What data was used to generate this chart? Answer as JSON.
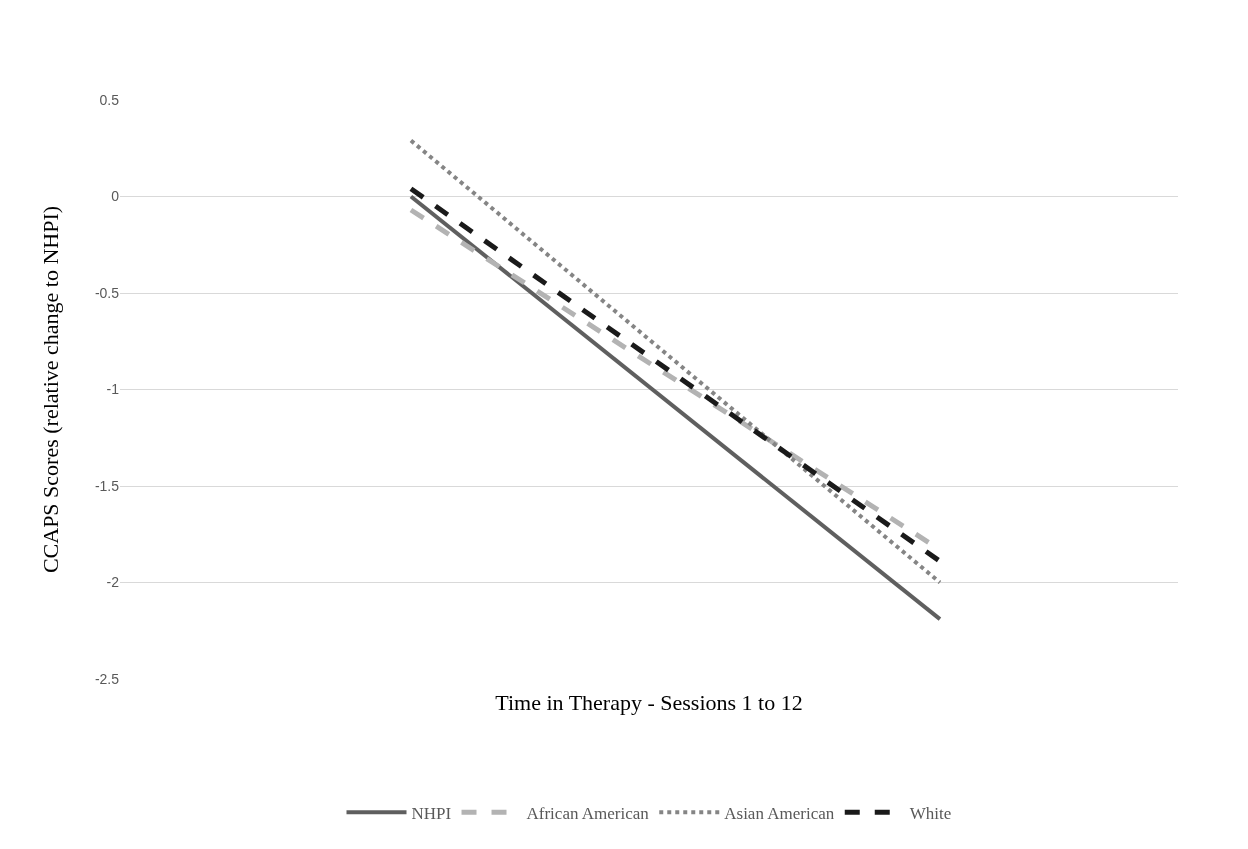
{
  "chart_data": {
    "type": "line",
    "xlabel": "Time in Therapy - Sessions 1 to 12",
    "ylabel": "CCAPS Scores (relative change to NHPI)",
    "categories": [
      null,
      null
    ],
    "series": [
      {
        "name": "NHPI",
        "color": "#5f5f5f",
        "line_style": "solid",
        "values": [
          0.0,
          -2.19
        ]
      },
      {
        "name": "African American",
        "color": "#b3b3b3",
        "line_style": "dashed",
        "values": [
          -0.07,
          -1.83
        ]
      },
      {
        "name": "Asian American",
        "color": "#858585",
        "line_style": "dotted",
        "values": [
          0.29,
          -2.0
        ]
      },
      {
        "name": "White",
        "color": "#1a1a1a",
        "line_style": "dashed",
        "values": [
          0.04,
          -1.89
        ]
      }
    ],
    "ylim": [
      -2.5,
      0.5
    ],
    "yticks": [
      0.5,
      0,
      -0.5,
      -1,
      -1.5,
      -2,
      -2.5
    ],
    "grid": "y",
    "legend": "bottom",
    "marker": "none",
    "tick_labels": "y"
  }
}
